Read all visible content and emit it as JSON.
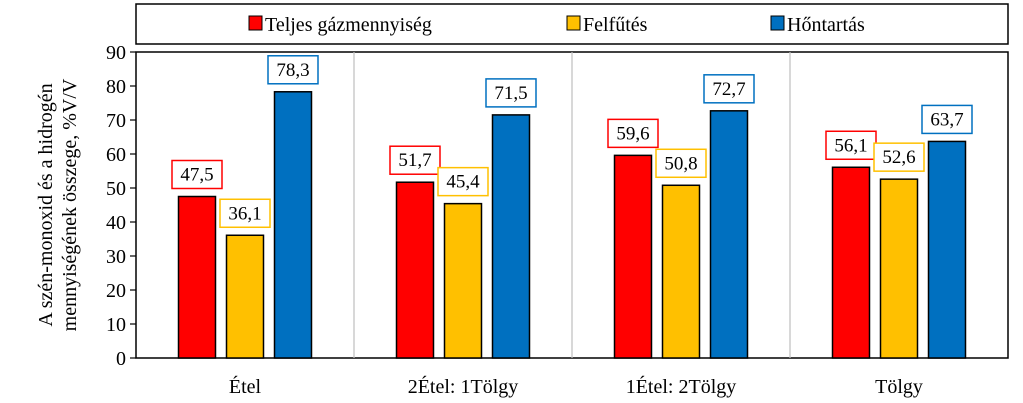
{
  "chart_data": {
    "type": "bar",
    "title": "",
    "xlabel": "",
    "ylabel_lines": [
      "A szén-monoxid és a hidrogén",
      "mennyiségének összege, %V/V"
    ],
    "ylim": [
      0,
      90
    ],
    "yticks": [
      0,
      10,
      20,
      30,
      40,
      50,
      60,
      70,
      80,
      90
    ],
    "categories": [
      "Étel",
      "2Étel: 1Tölgy",
      "1Étel: 2Tölgy",
      "Tölgy"
    ],
    "series": [
      {
        "name": "Teljes gázmennyiség",
        "color": "#ff0000",
        "values": [
          47.5,
          51.7,
          59.6,
          56.1
        ],
        "labels": [
          "47,5",
          "51,7",
          "59,6",
          "56,1"
        ]
      },
      {
        "name": "Felfűtés",
        "color": "#ffc000",
        "values": [
          36.1,
          45.4,
          50.8,
          52.6
        ],
        "labels": [
          "36,1",
          "45,4",
          "50,8",
          "52,6"
        ]
      },
      {
        "name": "Hőntartás",
        "color": "#0070c0",
        "values": [
          78.3,
          71.5,
          72.7,
          63.7
        ],
        "labels": [
          "78,3",
          "71,5",
          "72,7",
          "63,7"
        ]
      }
    ],
    "legend_position": "top",
    "grid": "vertical category separators",
    "data_labels": true
  }
}
